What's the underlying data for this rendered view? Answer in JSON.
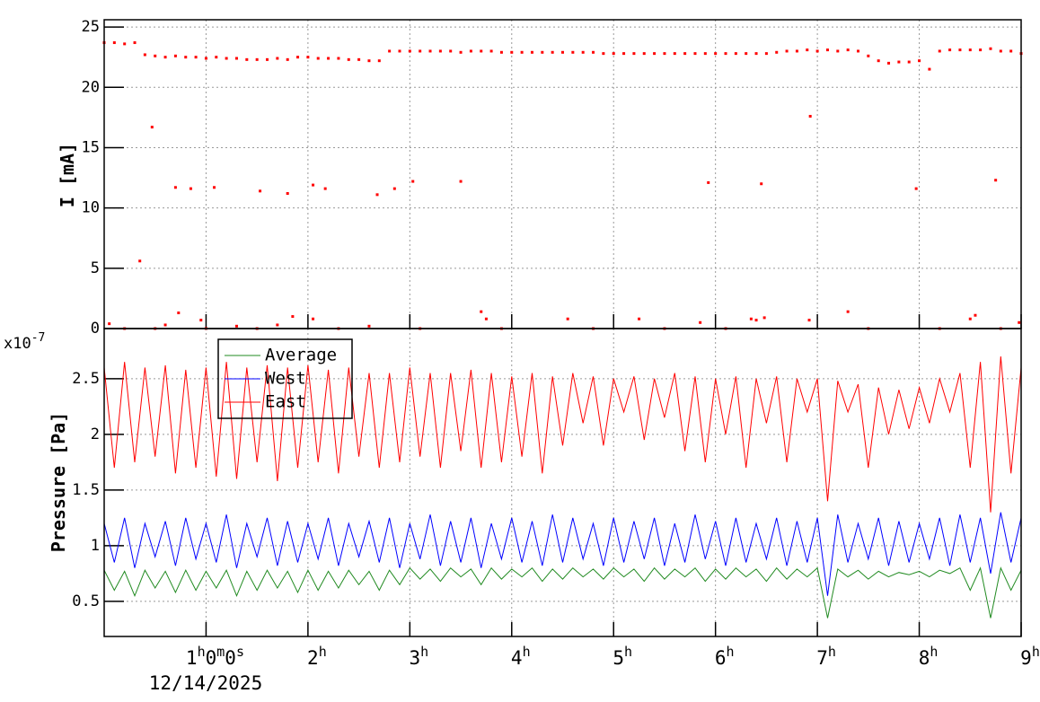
{
  "chart_data": [
    {
      "type": "scatter",
      "y_label": "I [mA]",
      "xlim": [
        0,
        9
      ],
      "ylim": [
        0,
        25.6
      ],
      "yticks": [
        0,
        5,
        10,
        15,
        20,
        25
      ],
      "grid": true,
      "series": [
        {
          "color": "#ff0000",
          "x": [
            0,
            0.1,
            0.2,
            0.3,
            0.4,
            0.5,
            0.6,
            0.7,
            0.8,
            0.9,
            1,
            1.1,
            1.2,
            1.3,
            1.4,
            1.5,
            1.6,
            1.7,
            1.8,
            1.9,
            2,
            2.1,
            2.2,
            2.3,
            2.4,
            2.5,
            2.6,
            2.7,
            2.8,
            2.9,
            3,
            3.1,
            3.2,
            3.3,
            3.4,
            3.5,
            3.6,
            3.7,
            3.8,
            3.9,
            4,
            4.1,
            4.2,
            4.3,
            4.4,
            4.5,
            4.6,
            4.7,
            4.8,
            4.9,
            5,
            5.1,
            5.2,
            5.3,
            5.4,
            5.5,
            5.6,
            5.7,
            5.8,
            5.9,
            6,
            6.1,
            6.2,
            6.3,
            6.4,
            6.5,
            6.6,
            6.7,
            6.8,
            6.9,
            7,
            7.1,
            7.2,
            7.3,
            7.4,
            7.5,
            7.6,
            7.7,
            7.8,
            7.9,
            8,
            8.1,
            8.2,
            8.3,
            8.4,
            8.5,
            8.6,
            8.7,
            8.8,
            8.9,
            9
          ],
          "values": [
            23.7,
            23.7,
            23.6,
            23.7,
            22.7,
            22.6,
            22.5,
            22.6,
            22.5,
            22.5,
            22.4,
            22.5,
            22.4,
            22.4,
            22.3,
            22.3,
            22.3,
            22.4,
            22.3,
            22.5,
            22.5,
            22.4,
            22.4,
            22.4,
            22.3,
            22.3,
            22.2,
            22.2,
            23.0,
            23.0,
            23.0,
            23.0,
            23.0,
            23.0,
            23.0,
            22.9,
            23.0,
            23.0,
            23.0,
            22.9,
            22.9,
            22.9,
            22.9,
            22.9,
            22.9,
            22.9,
            22.9,
            22.9,
            22.9,
            22.8,
            22.8,
            22.8,
            22.8,
            22.8,
            22.8,
            22.8,
            22.8,
            22.8,
            22.8,
            22.8,
            22.8,
            22.8,
            22.8,
            22.8,
            22.8,
            22.8,
            22.9,
            23.0,
            23.0,
            23.1,
            23.0,
            23.1,
            23.0,
            23.1,
            23.0,
            22.6,
            22.2,
            22.0,
            22.1,
            22.1,
            22.2,
            21.5,
            23.0,
            23.1,
            23.1,
            23.1,
            23.1,
            23.2,
            23.0,
            23.0,
            22.8
          ]
        },
        {
          "color": "#ff0000",
          "x": [
            0.35,
            0.47,
            0.7,
            0.85,
            1.08,
            1.53,
            1.8,
            2.05,
            2.17,
            2.68,
            2.85,
            3.03,
            3.5,
            5.93,
            6.45,
            6.93,
            7.97,
            8.75,
            0.05,
            0.6,
            0.73,
            0.95,
            1.3,
            1.7,
            1.85,
            2.05,
            2.6,
            3.7,
            3.75,
            4.55,
            5.25,
            5.85,
            6.35,
            6.4,
            6.48,
            6.92,
            7.3,
            8.5,
            8.55,
            8.98,
            0.2,
            0.5,
            1.0,
            1.5,
            2.3,
            3.1,
            3.9,
            4.8,
            5.5,
            6.1,
            7.5,
            8.2,
            8.8
          ],
          "values": [
            5.6,
            16.7,
            11.7,
            11.6,
            11.7,
            11.4,
            11.2,
            11.9,
            11.6,
            11.1,
            11.6,
            12.2,
            12.2,
            12.1,
            12.0,
            17.6,
            11.6,
            12.3,
            0.4,
            0.3,
            1.3,
            0.7,
            0.2,
            0.3,
            1.0,
            0.8,
            0.2,
            1.4,
            0.8,
            0.8,
            0.8,
            0.5,
            0.8,
            0.7,
            0.9,
            0.7,
            1.4,
            0.8,
            1.1,
            0.5,
            0,
            0,
            0,
            0,
            0,
            0,
            0,
            0,
            0,
            0,
            0,
            0,
            0
          ]
        }
      ]
    },
    {
      "type": "line",
      "y_label": "Pressure [Pa]",
      "y_multiplier": {
        "base": "x10",
        "exponent": "-7"
      },
      "xlim": [
        0,
        9
      ],
      "ylim": [
        0.185,
        2.95
      ],
      "yticks": [
        0.5,
        1,
        1.5,
        2,
        2.5
      ],
      "grid": true,
      "xticks": [
        {
          "value": 1,
          "label": "1h0m0s"
        },
        {
          "value": 2,
          "label": "2h"
        },
        {
          "value": 3,
          "label": "3h"
        },
        {
          "value": 4,
          "label": "4h"
        },
        {
          "value": 5,
          "label": "5h"
        },
        {
          "value": 6,
          "label": "6h"
        },
        {
          "value": 7,
          "label": "7h"
        },
        {
          "value": 8,
          "label": "8h"
        },
        {
          "value": 9,
          "label": "9h"
        }
      ],
      "x_date": "12/14/2025",
      "legend": "top-left",
      "x": [
        0,
        0.1,
        0.2,
        0.3,
        0.4,
        0.5,
        0.6,
        0.7,
        0.8,
        0.9,
        1,
        1.1,
        1.2,
        1.3,
        1.4,
        1.5,
        1.6,
        1.7,
        1.8,
        1.9,
        2,
        2.1,
        2.2,
        2.3,
        2.4,
        2.5,
        2.6,
        2.7,
        2.8,
        2.9,
        3,
        3.1,
        3.2,
        3.3,
        3.4,
        3.5,
        3.6,
        3.7,
        3.8,
        3.9,
        4,
        4.1,
        4.2,
        4.3,
        4.4,
        4.5,
        4.6,
        4.7,
        4.8,
        4.9,
        5,
        5.1,
        5.2,
        5.3,
        5.4,
        5.5,
        5.6,
        5.7,
        5.8,
        5.9,
        6,
        6.1,
        6.2,
        6.3,
        6.4,
        6.5,
        6.6,
        6.7,
        6.8,
        6.9,
        7,
        7.1,
        7.2,
        7.3,
        7.4,
        7.5,
        7.6,
        7.7,
        7.8,
        7.9,
        8,
        8.1,
        8.2,
        8.3,
        8.4,
        8.5,
        8.6,
        8.7,
        8.8,
        8.9,
        9
      ],
      "series": [
        {
          "name": "Average",
          "color": "#228b22",
          "values": [
            0.78,
            0.6,
            0.77,
            0.55,
            0.78,
            0.62,
            0.77,
            0.58,
            0.78,
            0.6,
            0.77,
            0.62,
            0.78,
            0.55,
            0.77,
            0.6,
            0.78,
            0.62,
            0.77,
            0.58,
            0.78,
            0.6,
            0.77,
            0.62,
            0.78,
            0.65,
            0.77,
            0.6,
            0.78,
            0.65,
            0.8,
            0.7,
            0.79,
            0.68,
            0.8,
            0.72,
            0.79,
            0.65,
            0.8,
            0.7,
            0.79,
            0.72,
            0.8,
            0.68,
            0.79,
            0.7,
            0.8,
            0.72,
            0.79,
            0.7,
            0.8,
            0.72,
            0.79,
            0.68,
            0.8,
            0.7,
            0.79,
            0.72,
            0.8,
            0.68,
            0.79,
            0.7,
            0.8,
            0.72,
            0.79,
            0.68,
            0.8,
            0.7,
            0.79,
            0.72,
            0.8,
            0.35,
            0.79,
            0.72,
            0.78,
            0.7,
            0.77,
            0.72,
            0.76,
            0.74,
            0.77,
            0.72,
            0.78,
            0.75,
            0.8,
            0.6,
            0.8,
            0.35,
            0.8,
            0.6,
            0.78
          ]
        },
        {
          "name": "West",
          "color": "#0000ff",
          "values": [
            1.2,
            0.85,
            1.25,
            0.8,
            1.2,
            0.9,
            1.22,
            0.82,
            1.25,
            0.88,
            1.2,
            0.85,
            1.28,
            0.8,
            1.2,
            0.9,
            1.25,
            0.82,
            1.22,
            0.85,
            1.2,
            0.88,
            1.25,
            0.82,
            1.2,
            0.9,
            1.22,
            0.85,
            1.25,
            0.8,
            1.2,
            0.88,
            1.28,
            0.82,
            1.22,
            0.85,
            1.25,
            0.8,
            1.2,
            0.88,
            1.25,
            0.85,
            1.22,
            0.82,
            1.28,
            0.85,
            1.25,
            0.88,
            1.2,
            0.82,
            1.25,
            0.85,
            1.22,
            0.88,
            1.25,
            0.82,
            1.2,
            0.85,
            1.28,
            0.88,
            1.22,
            0.82,
            1.25,
            0.85,
            1.2,
            0.88,
            1.25,
            0.82,
            1.22,
            0.85,
            1.25,
            0.55,
            1.28,
            0.85,
            1.2,
            0.88,
            1.25,
            0.82,
            1.22,
            0.85,
            1.2,
            0.88,
            1.25,
            0.82,
            1.28,
            0.85,
            1.25,
            0.75,
            1.3,
            0.85,
            1.25
          ]
        },
        {
          "name": "East",
          "color": "#ff0000",
          "values": [
            2.6,
            1.7,
            2.65,
            1.75,
            2.6,
            1.8,
            2.62,
            1.65,
            2.58,
            1.7,
            2.6,
            1.62,
            2.65,
            1.6,
            2.6,
            1.75,
            2.62,
            1.58,
            2.6,
            1.7,
            2.62,
            1.75,
            2.58,
            1.65,
            2.6,
            1.8,
            2.55,
            1.7,
            2.55,
            1.75,
            2.6,
            1.8,
            2.55,
            1.7,
            2.55,
            1.85,
            2.58,
            1.7,
            2.55,
            1.75,
            2.52,
            1.8,
            2.55,
            1.65,
            2.52,
            1.9,
            2.55,
            2.1,
            2.52,
            1.9,
            2.5,
            2.2,
            2.52,
            1.95,
            2.5,
            2.15,
            2.55,
            1.85,
            2.52,
            1.75,
            2.5,
            2.0,
            2.52,
            1.7,
            2.5,
            2.1,
            2.52,
            1.75,
            2.5,
            2.2,
            2.5,
            1.4,
            2.48,
            2.2,
            2.45,
            1.7,
            2.42,
            2.0,
            2.4,
            2.05,
            2.42,
            2.1,
            2.5,
            2.2,
            2.55,
            1.7,
            2.65,
            1.3,
            2.7,
            1.65,
            2.6
          ]
        }
      ]
    }
  ]
}
